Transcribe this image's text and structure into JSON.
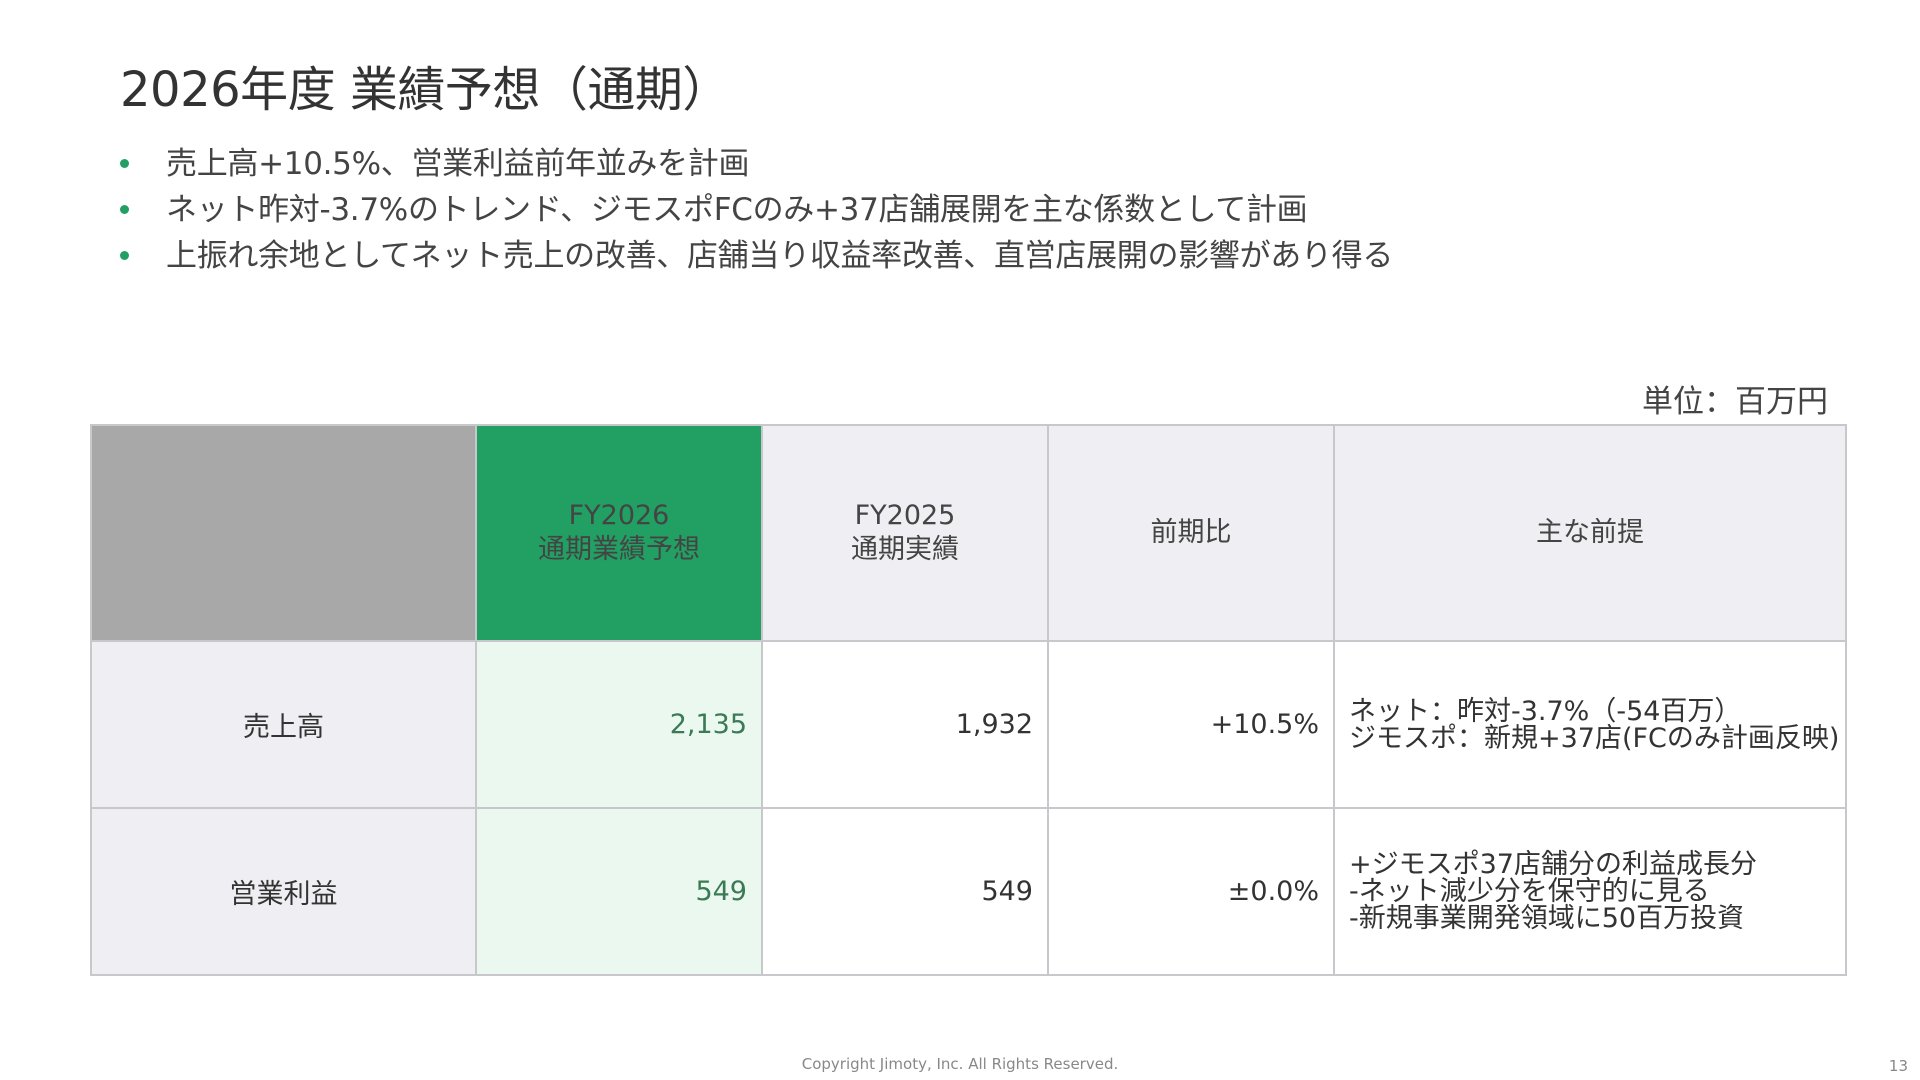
{
  "colors": {
    "accent": "#22a063",
    "accent_light": "#ebf8f0",
    "accent_text": "#3a7a55",
    "header_gray": "#efeff3",
    "corner_gray": "#a8a8a8"
  },
  "page": {
    "title": "2026年度 業績予想（通期）",
    "unit_label": "単位：百万円",
    "footer": "Copyright Jimoty, Inc. All Rights Reserved.",
    "page_number": "13"
  },
  "bullets": [
    "売上高+10.5%、営業利益前年並みを計画",
    "ネット昨対-3.7%のトレンド、ジモスポFCのみ+37店舗展開を主な係数として計画",
    "上振れ余地としてネット売上の改善、店舗当り収益率改善、直営店展開の影響があり得る"
  ],
  "table": {
    "headers": [
      {
        "line1": "FY2026",
        "line2": "通期業績予想"
      },
      {
        "line1": "FY2025",
        "line2": "通期実績"
      },
      {
        "line1": "前期比",
        "line2": ""
      },
      {
        "line1": "主な前提",
        "line2": ""
      }
    ],
    "rows": [
      {
        "label": "売上高",
        "fy2026": "2,135",
        "fy2025": "1,932",
        "yoy": "+10.5%",
        "notes": [
          "ネット：昨対-3.7%（-54百万）",
          "ジモスポ：新規+37店(FCのみ計画反映)"
        ]
      },
      {
        "label": "営業利益",
        "fy2026": "549",
        "fy2025": "549",
        "yoy": "±0.0%",
        "notes": [
          "+ジモスポ37店舗分の利益成長分",
          "-ネット減少分を保守的に見る",
          "-新規事業開発領域に50百万投資"
        ]
      }
    ]
  }
}
